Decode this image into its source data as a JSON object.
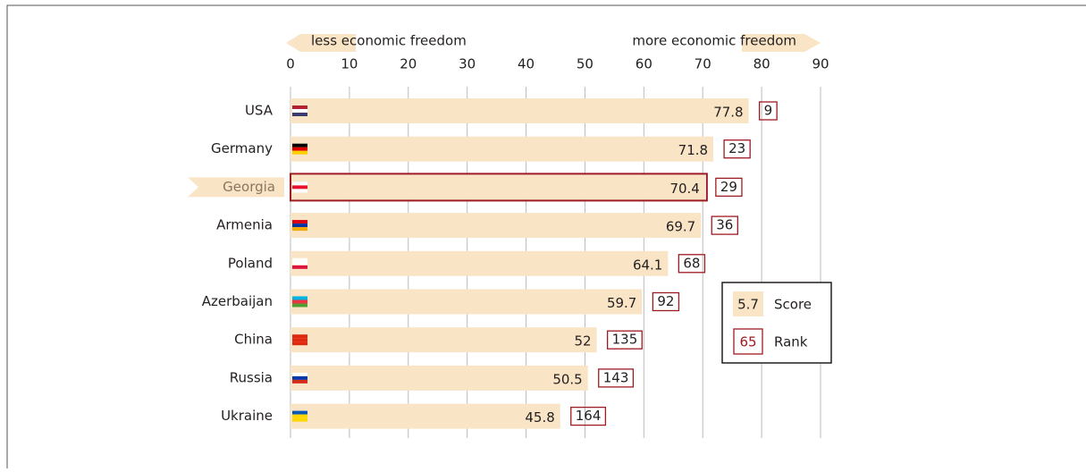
{
  "chart_data": {
    "type": "bar",
    "annotations": {
      "left": "less economic freedom",
      "right": "more economic freedom"
    },
    "categories": [
      "USA",
      "Germany",
      "Georgia",
      "Armenia",
      "Poland",
      "Azerbaijan",
      "China",
      "Russia",
      "Ukraine"
    ],
    "values": [
      77.8,
      71.8,
      70.4,
      69.7,
      64.1,
      59.7,
      52,
      50.5,
      45.8
    ],
    "ranks": [
      9,
      23,
      29,
      36,
      68,
      92,
      135,
      143,
      164
    ],
    "highlight": "Georgia",
    "color": "#f9e4c6",
    "rank_color": "#9e1b22",
    "xlim": [
      0,
      90
    ],
    "xticks": [
      0,
      10,
      20,
      30,
      40,
      50,
      60,
      70,
      80,
      90
    ],
    "grid": true,
    "legend": [
      {
        "sample": "5.7",
        "label": "Score"
      },
      {
        "sample": "65",
        "label": "Rank"
      }
    ]
  }
}
